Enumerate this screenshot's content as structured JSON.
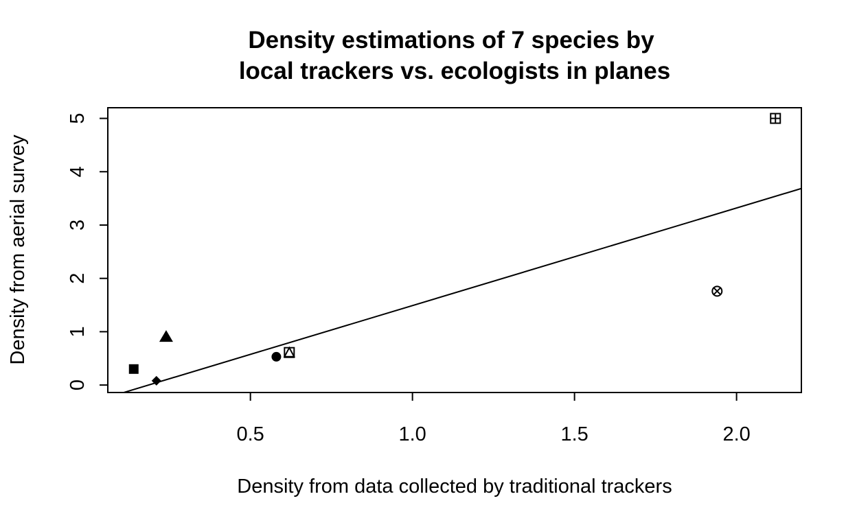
{
  "chart_data": {
    "type": "scatter",
    "title": [
      "Density estimations of 7 species by",
      "local trackers vs. ecologists in planes"
    ],
    "xlabel": "Density from data collected by traditional trackers",
    "ylabel": "Density from aerial survey",
    "xlim": [
      0.06,
      2.2
    ],
    "ylim": [
      -0.14,
      5.2
    ],
    "xticks": [
      0.5,
      1.0,
      1.5,
      2.0
    ],
    "xtick_labels": [
      "0.5",
      "1.0",
      "1.5",
      "2.0"
    ],
    "yticks": [
      0,
      1,
      2,
      3,
      4,
      5
    ],
    "ytick_labels": [
      "0",
      "1",
      "2",
      "3",
      "4",
      "5"
    ],
    "grid": false,
    "points": [
      {
        "x": 0.14,
        "y": 0.3,
        "marker": "filled-square"
      },
      {
        "x": 0.21,
        "y": 0.08,
        "marker": "filled-diamond"
      },
      {
        "x": 0.24,
        "y": 0.9,
        "marker": "filled-triangle"
      },
      {
        "x": 0.58,
        "y": 0.53,
        "marker": "filled-circle"
      },
      {
        "x": 0.62,
        "y": 0.61,
        "marker": "square-triangle"
      },
      {
        "x": 1.94,
        "y": 1.76,
        "marker": "circle-x"
      },
      {
        "x": 2.12,
        "y": 5.0,
        "marker": "square-plus"
      }
    ],
    "fit_line": {
      "intercept": -0.34,
      "slope": 1.83
    },
    "colors": {
      "foreground": "#000000",
      "background": "#ffffff"
    }
  }
}
